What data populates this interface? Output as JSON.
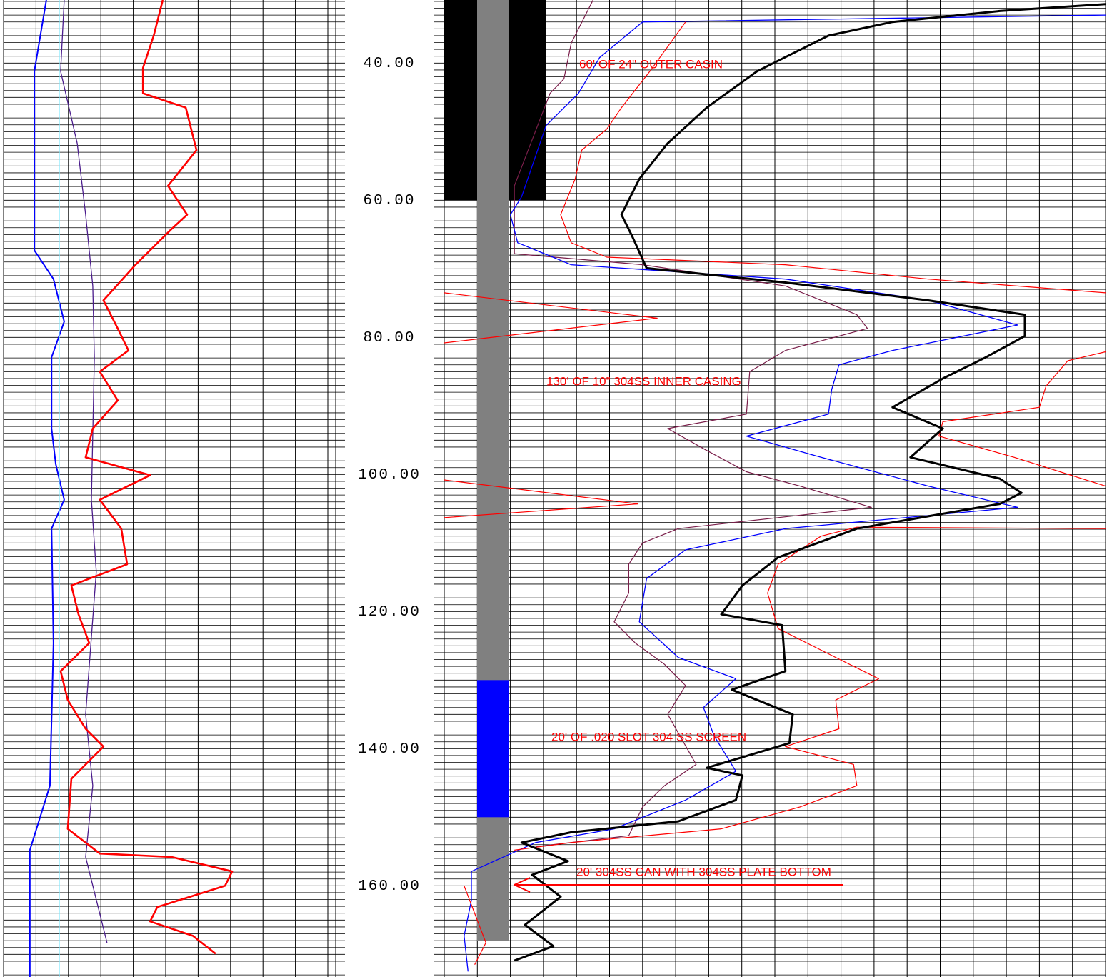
{
  "chart_data": {
    "type": "well-log",
    "ylim": [
      30.8,
      173.3
    ],
    "yticks": [
      {
        "value": 40,
        "label": "40.00"
      },
      {
        "value": 60,
        "label": "60.00"
      },
      {
        "value": 80,
        "label": "80.00"
      },
      {
        "value": 100,
        "label": "100.00"
      },
      {
        "value": 120,
        "label": "120.00"
      },
      {
        "value": 140,
        "label": "140.00"
      },
      {
        "value": 160,
        "label": "160.00"
      }
    ],
    "ygrid": [
      31,
      32,
      33,
      34,
      35,
      36,
      37,
      38,
      39,
      40,
      41,
      42,
      43,
      44,
      45,
      46,
      47,
      48,
      49,
      50,
      51,
      52,
      53,
      54,
      55,
      56,
      57,
      58,
      59,
      60,
      61,
      62,
      63,
      64,
      65,
      66,
      67,
      68,
      69,
      70,
      71,
      72,
      73,
      74,
      75,
      76,
      77,
      78,
      79,
      80,
      81,
      82,
      83,
      84,
      85,
      86,
      87,
      88,
      89,
      90,
      91,
      92,
      93,
      94,
      95,
      96,
      97,
      98,
      99,
      100,
      101,
      102,
      103,
      104,
      105,
      106,
      107,
      108,
      109,
      110,
      111,
      112,
      113,
      114,
      115,
      116,
      117,
      118,
      119,
      120,
      121,
      122,
      123,
      124,
      125,
      126,
      127,
      128,
      129,
      130,
      131,
      132,
      133,
      134,
      135,
      136,
      137,
      138,
      139,
      140,
      141,
      142,
      143,
      144,
      145,
      146,
      147,
      148,
      149,
      150,
      151,
      152,
      153,
      154,
      155,
      156,
      157,
      158,
      159,
      160,
      161,
      162,
      163,
      164,
      165,
      166,
      167,
      168,
      169,
      170,
      171,
      172,
      173
    ],
    "tracks": [
      {
        "xlim": [
          0,
          100
        ],
        "xticks": [
          0,
          10,
          20,
          30,
          40,
          50,
          60,
          70,
          80,
          90,
          100
        ],
        "series": [
          {
            "color": "#0000ff",
            "width": 2,
            "depth": [
              30.8,
              35.0,
              41.2,
              67.3,
              71.5,
              77.7,
              82.9,
              93.3,
              98.5,
              103.7,
              107.9,
              124.6,
              145.4,
              154.8,
              173.3
            ],
            "values": [
              13.2,
              11.7,
              9.5,
              9.5,
              15.4,
              18.7,
              14.8,
              14.8,
              16.1,
              18.7,
              14.8,
              15.4,
              14.3,
              8.1,
              8.1
            ]
          },
          {
            "color": "#4b1c8c",
            "width": 1.3,
            "depth": [
              30.8,
              41.2,
              51.7,
              62.1,
              72.5,
              82.9,
              103.7,
              114.2,
              135.0,
              145.4,
              155.8,
              166.2,
              168.3
            ],
            "values": [
              18.7,
              17.6,
              22.7,
              25.3,
              27.5,
              28.0,
              27.1,
              28.6,
              25.3,
              27.5,
              25.3,
              30.8,
              31.9
            ]
          },
          {
            "color": "#ff0000",
            "width": 2.6,
            "depth": [
              30.8,
              36.0,
              40.7,
              44.4,
              46.5,
              52.7,
              57.9,
              62.1,
              64.2,
              69.4,
              74.6,
              78.7,
              81.9,
              85.0,
              89.2,
              93.3,
              97.5,
              100.1,
              103.7,
              107.9,
              113.1,
              116.2,
              120.4,
              124.6,
              128.7,
              132.9,
              137.1,
              139.7,
              144.4,
              151.7,
              155.3,
              155.8,
              157.9,
              160.0,
              163.1,
              165.2,
              167.3,
              169.9
            ],
            "values": [
              49.1,
              46.3,
              43.0,
              43.0,
              56.2,
              59.5,
              50.7,
              56.6,
              51.8,
              40.7,
              30.8,
              35.2,
              38.5,
              29.7,
              35.2,
              27.5,
              25.3,
              45.2,
              29.7,
              36.3,
              38.1,
              20.9,
              23.1,
              26.4,
              17.6,
              19.8,
              25.3,
              30.8,
              20.9,
              19.8,
              29.7,
              51.8,
              70.5,
              68.3,
              47.4,
              45.2,
              58.4,
              65.4
            ]
          },
          {
            "color": "#7fe8ff",
            "width": 1,
            "depth": [
              30.8,
              173.3
            ],
            "values": [
              17.2,
              17.2
            ]
          }
        ]
      },
      {
        "xlim": [
          0,
          100
        ],
        "xticks": [
          0,
          5,
          10,
          15,
          20,
          25,
          30,
          35,
          40,
          45,
          50,
          55,
          60,
          65,
          70,
          75,
          80,
          85,
          90,
          95,
          100
        ],
        "series": [
          {
            "color": "#7a1e4a",
            "width": 1.2,
            "depth": [
              30.8,
              37.1,
              42.3,
              44.4,
              57.9,
              67.8,
              69.4,
              72.5,
              76.7,
              78.7,
              81.9,
              85.0,
              91.2,
              93.3,
              96.5,
              99.6,
              101.7,
              104.8,
              107.9,
              110.0,
              113.1,
              117.3,
              121.5,
              124.6,
              127.7,
              130.8,
              135.0,
              142.3,
              145.4,
              148.5,
              152.7,
              154.3
            ],
            "values": [
              22.5,
              19.2,
              18.1,
              16.0,
              10.6,
              10.6,
              30.0,
              51.6,
              62.4,
              64.0,
              51.6,
              46.2,
              45.7,
              33.8,
              39.7,
              45.7,
              53.8,
              64.6,
              35.4,
              30.0,
              27.9,
              27.9,
              25.7,
              28.9,
              33.3,
              36.5,
              33.8,
              38.1,
              33.3,
              30.0,
              27.9,
              13.8
            ]
          },
          {
            "color": "#0000ff",
            "width": 1.3,
            "depth": [
              33.0,
              34.0,
              39.2,
              44.4,
              49.1,
              59.5,
              62.1,
              66.2,
              69.4,
              71.5,
              74.6,
              78.2,
              81.9,
              84.0,
              87.6,
              91.2,
              94.4,
              97.5,
              101.7,
              104.8,
              107.9,
              111.0,
              115.2,
              121.5,
              126.7,
              129.8,
              134.0,
              138.1,
              143.3,
              147.5,
              151.7,
              153.7,
              157.9,
              162.1,
              167.3,
              172.5
            ],
            "values": [
              100,
              30.0,
              23.5,
              20.3,
              15.4,
              11.7,
              10.0,
              11.1,
              19.2,
              51.6,
              73.2,
              86.7,
              67.8,
              59.7,
              58.6,
              58.1,
              45.7,
              57.0,
              73.2,
              86.7,
              51.6,
              36.5,
              30.6,
              29.5,
              35.4,
              44.1,
              39.2,
              40.8,
              44.1,
              36.5,
              25.7,
              13.8,
              4.1,
              4.1,
              3.0,
              3.6
            ]
          },
          {
            "color": "#ff0000",
            "width": 1.2,
            "depth": [
              34.0,
              41.2,
              46.5,
              49.6,
              52.7,
              56.9,
              62.1,
              66.2,
              68.3,
              69.4,
              71.5,
              73.5,
              null,
              73.5,
              77.2,
              80.8,
              null,
              82.1,
              83.4,
              87.1,
              90.2,
              92.3,
              94.4,
              97.5,
              101.7,
              null,
              100.8,
              104.3,
              106.3,
              null,
              107.9,
              107.7,
              109.0,
              113.1,
              117.3,
              122.5,
              126.7,
              129.8,
              132.9,
              137.1,
              139.7,
              142.3,
              145.4,
              148.5,
              151.7,
              153.7,
              154.8,
              null,
              160.0,
              168.3,
              171.5
            ],
            "values": [
              36.5,
              31.1,
              26.8,
              24.6,
              20.8,
              19.8,
              17.6,
              19.2,
              24.6,
              51.6,
              73.2,
              100,
              null,
              0,
              32.2,
              0,
              null,
              100,
              94.3,
              91.0,
              90.0,
              75.4,
              74.8,
              86.2,
              100,
              null,
              0,
              29.3,
              0,
              null,
              100,
              62.4,
              57.0,
              50.5,
              48.9,
              50.5,
              59.2,
              65.7,
              59.2,
              59.7,
              51.6,
              61.9,
              62.4,
              53.8,
              41.9,
              19.2,
              10.6,
              null,
              3.0,
              6.3,
              4.6
            ]
          },
          {
            "color": "#000000",
            "width": 3,
            "depth": [
              31.4,
              32.4,
              34.0,
              36.0,
              41.2,
              46.5,
              51.7,
              56.9,
              62.1,
              65.2,
              69.9,
              72.0,
              74.6,
              76.7,
              79.8,
              82.9,
              86.0,
              90.2,
              93.3,
              97.5,
              100.6,
              102.7,
              104.3,
              107.9,
              112.1,
              116.2,
              120.4,
              122.0,
              128.7,
              131.4,
              135.0,
              139.2,
              142.8,
              143.9,
              147.5,
              150.6,
              152.2,
              153.7,
              156.4,
              158.4,
              161.6,
              165.7,
              168.8,
              170.9
            ],
            "values": [
              100,
              84.0,
              67.8,
              58.1,
              47.3,
              39.7,
              33.8,
              29.5,
              26.8,
              28.4,
              30.6,
              51.6,
              73.2,
              87.8,
              87.8,
              81.9,
              75.4,
              67.8,
              75.4,
              70.5,
              84.0,
              87.3,
              84.0,
              62.4,
              50.5,
              45.1,
              41.9,
              51.1,
              51.6,
              43.5,
              52.7,
              52.2,
              39.7,
              45.1,
              44.1,
              35.4,
              19.2,
              11.7,
              18.7,
              13.3,
              17.6,
              12.2,
              16.5,
              10.6
            ]
          }
        ]
      }
    ],
    "well": [
      {
        "top": 0,
        "bottom": 60,
        "color": "#000000"
      },
      {
        "top": 0,
        "bottom": 168,
        "color": "#808080"
      },
      {
        "top": 130,
        "bottom": 150,
        "color": "#0000ff"
      }
    ],
    "annotations": [
      "60' OF 24\" OUTER CASIN",
      "130' OF 10\" 304SS INNER  CASING",
      "20' OF .020 SLOT 304 SS SCREEN",
      "20' 304SS CAN WITH 304SS PLATE BOTTOM"
    ]
  }
}
